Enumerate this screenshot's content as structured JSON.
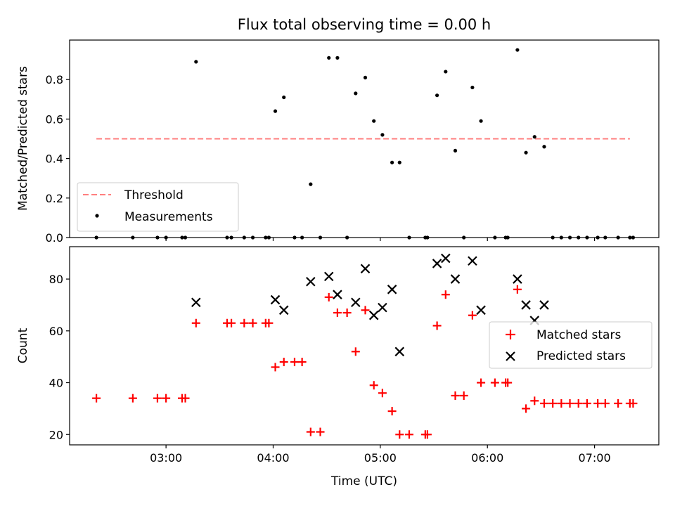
{
  "chart_data": {
    "title": "Flux total observing time = 0.00 h",
    "xlabel": "Time (UTC)",
    "x_unit": "hours UTC",
    "xlim": [
      2.1,
      7.6
    ],
    "x_ticks": [
      3,
      4,
      5,
      6,
      7
    ],
    "x_tick_labels": [
      "03:00",
      "04:00",
      "05:00",
      "06:00",
      "07:00"
    ],
    "panels": [
      {
        "type": "scatter",
        "ylabel": "Matched/Predicted stars",
        "ylim": [
          0,
          1.0
        ],
        "y_ticks": [
          0.0,
          0.2,
          0.4,
          0.6,
          0.8
        ],
        "y_tick_labels": [
          "0.0",
          "0.2",
          "0.4",
          "0.6",
          "0.8"
        ],
        "legend_placement": "lower-left",
        "threshold": {
          "name": "Threshold",
          "value": 0.5,
          "x_range": [
            2.35,
            7.33
          ],
          "color": "#ff7f7f"
        },
        "series": [
          {
            "name": "Measurements",
            "marker": "dot",
            "color": "#000000",
            "x": [
              2.35,
              2.69,
              2.92,
              3.0,
              3.15,
              3.18,
              3.28,
              3.57,
              3.61,
              3.73,
              3.81,
              3.93,
              3.96,
              4.02,
              4.1,
              4.2,
              4.27,
              4.35,
              4.44,
              4.52,
              4.6,
              4.69,
              4.77,
              4.86,
              4.94,
              5.02,
              5.11,
              5.18,
              5.27,
              5.42,
              5.44,
              5.53,
              5.61,
              5.7,
              5.78,
              5.86,
              5.94,
              6.07,
              6.17,
              6.19,
              6.28,
              6.36,
              6.44,
              6.53,
              6.61,
              6.69,
              6.77,
              6.85,
              6.93,
              7.03,
              7.1,
              7.22,
              7.33,
              7.36
            ],
            "y": [
              0,
              0,
              0,
              0,
              0,
              0,
              0.89,
              0,
              0,
              0,
              0,
              0,
              0,
              0.64,
              0.71,
              0,
              0,
              0.27,
              0,
              0.91,
              0.91,
              0,
              0.73,
              0.81,
              0.59,
              0.52,
              0.38,
              0.38,
              0,
              0,
              0,
              0.72,
              0.84,
              0.44,
              0,
              0.76,
              0.59,
              0,
              0,
              0,
              0.95,
              0.43,
              0.51,
              0.46,
              0,
              0,
              0,
              0,
              0,
              0,
              0,
              0,
              0,
              0
            ]
          }
        ]
      },
      {
        "type": "scatter",
        "ylabel": "Count",
        "ylim": [
          16,
          92.5
        ],
        "y_ticks": [
          20,
          40,
          60,
          80
        ],
        "y_tick_labels": [
          "20",
          "40",
          "60",
          "80"
        ],
        "legend_placement": "center-right",
        "series": [
          {
            "name": "Matched stars",
            "marker": "plus",
            "color": "#ff0000",
            "x": [
              2.35,
              2.69,
              2.92,
              3.0,
              3.15,
              3.18,
              3.28,
              3.57,
              3.61,
              3.73,
              3.81,
              3.93,
              3.96,
              4.02,
              4.1,
              4.2,
              4.27,
              4.35,
              4.44,
              4.52,
              4.6,
              4.69,
              4.77,
              4.86,
              4.94,
              5.02,
              5.11,
              5.18,
              5.27,
              5.42,
              5.44,
              5.53,
              5.61,
              5.7,
              5.78,
              5.86,
              5.94,
              6.07,
              6.17,
              6.19,
              6.28,
              6.36,
              6.44,
              6.53,
              6.61,
              6.69,
              6.77,
              6.85,
              6.93,
              7.03,
              7.1,
              7.22,
              7.33,
              7.36
            ],
            "y": [
              34,
              34,
              34,
              34,
              34,
              34,
              63,
              63,
              63,
              63,
              63,
              63,
              63,
              46,
              48,
              48,
              48,
              21,
              21,
              73,
              67,
              67,
              52,
              68,
              39,
              36,
              29,
              20,
              20,
              20,
              20,
              62,
              74,
              35,
              35,
              66,
              40,
              40,
              40,
              40,
              76,
              30,
              33,
              32,
              32,
              32,
              32,
              32,
              32,
              32,
              32,
              32,
              32,
              32
            ]
          },
          {
            "name": "Predicted stars",
            "marker": "x",
            "color": "#000000",
            "x": [
              3.28,
              4.02,
              4.1,
              4.35,
              4.52,
              4.6,
              4.77,
              4.86,
              4.94,
              5.02,
              5.11,
              5.18,
              5.53,
              5.61,
              5.7,
              5.86,
              5.94,
              6.28,
              6.36,
              6.44,
              6.53
            ],
            "y": [
              71,
              72,
              68,
              79,
              81,
              74,
              71,
              84,
              66,
              69,
              76,
              52,
              86,
              88,
              80,
              87,
              68,
              80,
              70,
              64,
              70
            ]
          }
        ]
      }
    ]
  }
}
